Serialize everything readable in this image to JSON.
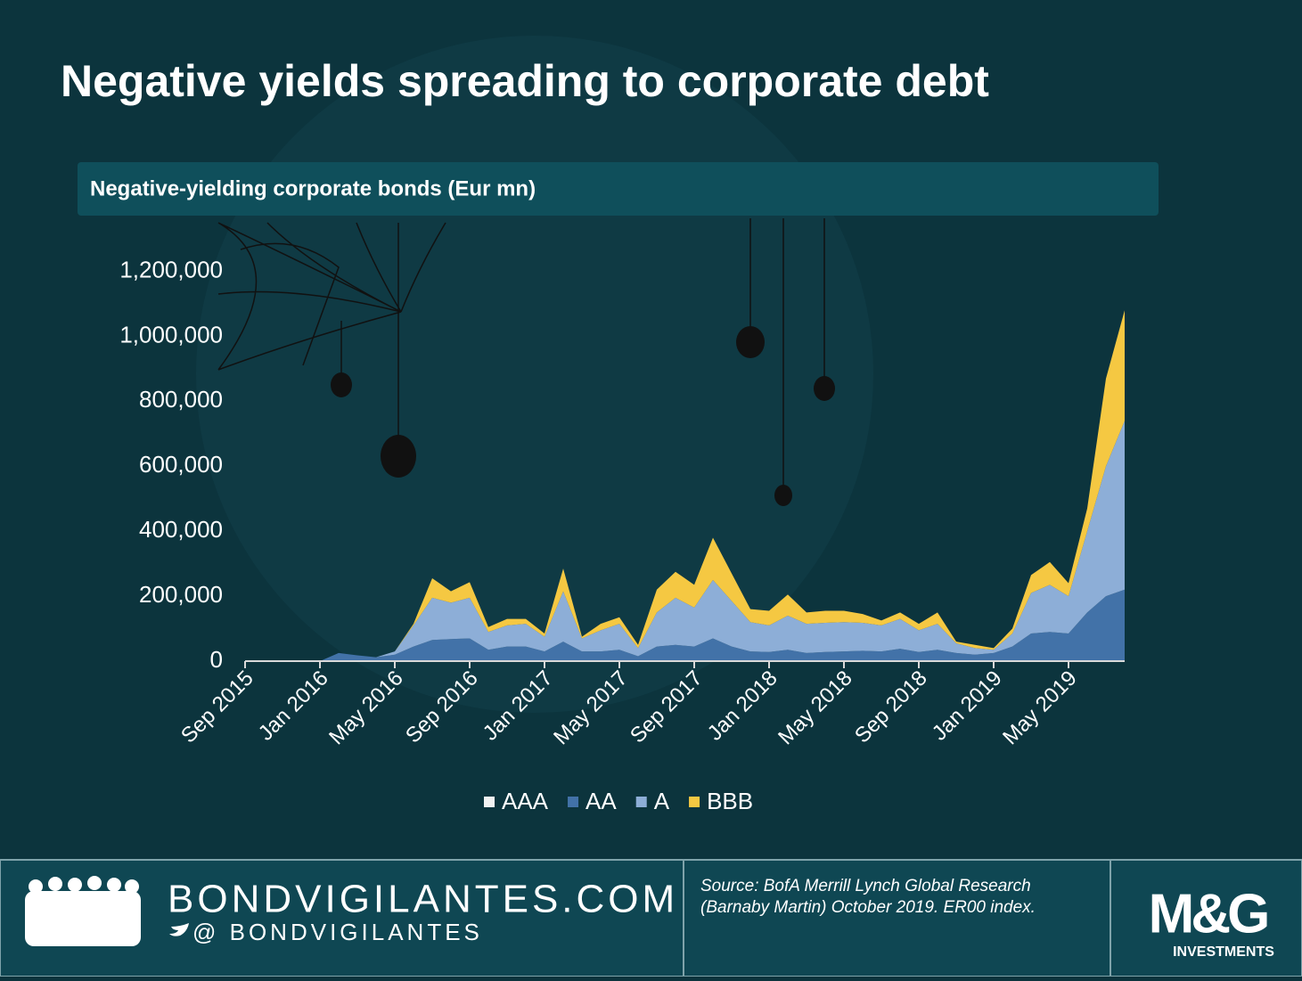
{
  "chart_data": {
    "type": "stacked_area",
    "title": "Negative yields spreading to corporate debt",
    "subtitle": "Negative-yielding corporate bonds (Eur mn)",
    "categories": [
      "Sep 2015",
      null,
      null,
      null,
      "Jan 2016",
      null,
      null,
      null,
      "May 2016",
      null,
      null,
      null,
      "Sep 2016",
      null,
      null,
      null,
      "Jan 2017",
      null,
      null,
      null,
      "May 2017",
      null,
      null,
      null,
      "Sep 2017",
      null,
      null,
      null,
      "Jan 2018",
      null,
      null,
      null,
      "May 2018",
      null,
      null,
      null,
      "Sep 2018",
      null,
      null,
      null,
      "Jan 2019",
      null,
      null,
      null,
      "May 2019",
      null,
      null,
      null
    ],
    "series": [
      {
        "name": "AAA",
        "color": "#f2f2f2",
        "values": [
          0,
          0,
          0,
          0,
          0,
          0,
          0,
          0,
          0,
          0,
          0,
          0,
          0,
          0,
          0,
          0,
          0,
          0,
          0,
          0,
          0,
          0,
          0,
          0,
          0,
          0,
          0,
          0,
          0,
          0,
          0,
          0,
          0,
          0,
          0,
          0,
          0,
          0,
          0,
          0,
          0,
          0,
          0,
          0,
          0,
          0,
          0,
          0
        ]
      },
      {
        "name": "AA",
        "color": "#4272a8",
        "values": [
          0,
          0,
          0,
          0,
          0,
          25000,
          18000,
          12000,
          20000,
          45000,
          65000,
          68000,
          70000,
          35000,
          45000,
          45000,
          30000,
          60000,
          30000,
          30000,
          35000,
          15000,
          45000,
          50000,
          45000,
          70000,
          45000,
          30000,
          28000,
          35000,
          25000,
          28000,
          30000,
          32000,
          30000,
          38000,
          28000,
          35000,
          25000,
          20000,
          25000,
          45000,
          85000,
          90000,
          85000,
          150000,
          200000,
          220000
        ]
      },
      {
        "name": "A",
        "color": "#8daed7",
        "values": [
          0,
          0,
          0,
          0,
          0,
          0,
          0,
          0,
          10000,
          65000,
          130000,
          112000,
          125000,
          55000,
          65000,
          70000,
          45000,
          155000,
          40000,
          65000,
          80000,
          25000,
          105000,
          145000,
          120000,
          180000,
          140000,
          90000,
          82000,
          105000,
          90000,
          90000,
          90000,
          86000,
          80000,
          92000,
          67000,
          80000,
          30000,
          20000,
          10000,
          40000,
          125000,
          145000,
          115000,
          250000,
          400000,
          520000
        ]
      },
      {
        "name": "BBB",
        "color": "#f5c842",
        "values": [
          0,
          0,
          0,
          0,
          0,
          0,
          0,
          0,
          0,
          5000,
          60000,
          35000,
          48000,
          15000,
          20000,
          15000,
          10000,
          70000,
          5000,
          20000,
          20000,
          10000,
          70000,
          80000,
          70000,
          130000,
          85000,
          40000,
          45000,
          65000,
          35000,
          37000,
          35000,
          27000,
          15000,
          20000,
          20000,
          35000,
          5000,
          10000,
          5000,
          15000,
          55000,
          70000,
          40000,
          70000,
          270000,
          340000
        ]
      }
    ],
    "ylim": [
      0,
      1200000
    ],
    "yticks": [
      0,
      {
        "value": 200000,
        "label": "200,000"
      },
      {
        "value": 400000,
        "label": "400,000"
      },
      {
        "value": 600000,
        "label": "600,000"
      },
      {
        "value": 800000,
        "label": "800,000"
      },
      {
        "value": 1000000,
        "label": "1,000,000"
      },
      {
        "value": 1200000,
        "label": "1,200,000"
      }
    ],
    "grid": false,
    "legend": "bottom"
  },
  "footer": {
    "site": "BONDVIGILANTES.COM",
    "handle": "@ BONDVIGILANTES",
    "source": [
      "Source: BofA Merrill Lynch Global Research",
      "(Barnaby Martin) October 2019. ER00 index."
    ],
    "logo": "M&G",
    "logo_sub": "INVESTMENTS"
  }
}
